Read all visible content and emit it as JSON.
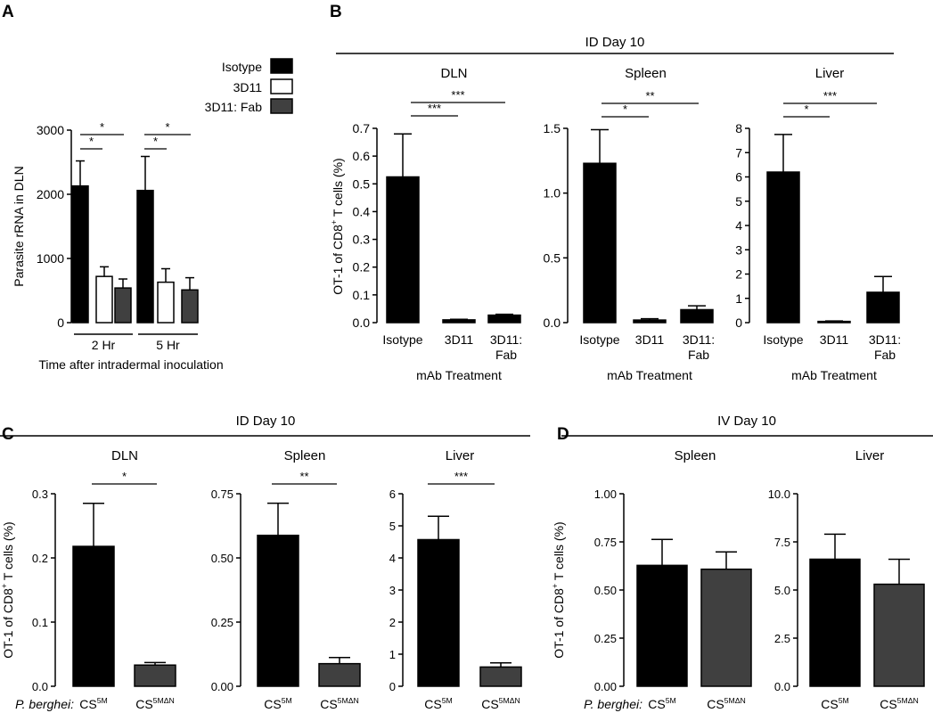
{
  "panels": {
    "A": {
      "letter": "A"
    },
    "B": {
      "letter": "B",
      "header": "ID Day 10"
    },
    "C": {
      "letter": "C",
      "header": "ID Day 10"
    },
    "D": {
      "letter": "D",
      "header": "IV Day 10"
    }
  },
  "colors": {
    "isotype": "#000000",
    "d3d11": "#ffffff",
    "fab": "#404040",
    "cs5m": "#000000",
    "cs5mdn": "#404040"
  },
  "chart_data": [
    {
      "id": "A",
      "type": "bar",
      "ylabel": "Parasite rRNA in DLN",
      "xlabel": "Time after intradermal inoculation",
      "categories": [
        "2 Hr",
        "5 Hr"
      ],
      "ylim": [
        0,
        3000
      ],
      "yticks": [
        "0",
        "1000",
        "2000",
        "3000"
      ],
      "legend": [
        "Isotype",
        "3D11",
        "3D11: Fab"
      ],
      "series": [
        {
          "name": "Isotype",
          "values": [
            2130,
            2060
          ],
          "errors": [
            390,
            530
          ]
        },
        {
          "name": "3D11",
          "values": [
            720,
            630
          ],
          "errors": [
            150,
            210
          ]
        },
        {
          "name": "3D11: Fab",
          "values": [
            540,
            510
          ],
          "errors": [
            140,
            190
          ]
        }
      ],
      "significance": [
        "*",
        "*",
        "*",
        "*"
      ]
    },
    {
      "id": "B1",
      "type": "bar",
      "title": "DLN",
      "ylabel": "OT-1 of CD8+ T cells (%)",
      "xlabel": "mAb Treatment",
      "categories": [
        "Isotype",
        "3D11",
        "3D11: Fab"
      ],
      "values": [
        0.525,
        0.01,
        0.027
      ],
      "errors": [
        0.155,
        0.002,
        0.003
      ],
      "ylim": [
        0,
        0.7
      ],
      "yticks": [
        "0.0",
        "0.1",
        "0.2",
        "0.3",
        "0.4",
        "0.5",
        "0.6",
        "0.7"
      ],
      "significance": [
        "***",
        "***"
      ]
    },
    {
      "id": "B2",
      "type": "bar",
      "title": "Spleen",
      "xlabel": "mAb Treatment",
      "categories": [
        "Isotype",
        "3D11",
        "3D11: Fab"
      ],
      "values": [
        1.23,
        0.02,
        0.1
      ],
      "errors": [
        0.26,
        0.01,
        0.03
      ],
      "ylim": [
        0,
        1.5
      ],
      "yticks": [
        "0.0",
        "0.5",
        "1.0",
        "1.5"
      ],
      "significance": [
        "**",
        "*"
      ]
    },
    {
      "id": "B3",
      "type": "bar",
      "title": "Liver",
      "xlabel": "mAb Treatment",
      "categories": [
        "Isotype",
        "3D11",
        "3D11: Fab"
      ],
      "values": [
        6.2,
        0.05,
        1.25
      ],
      "errors": [
        1.55,
        0.02,
        0.65
      ],
      "ylim": [
        0,
        8
      ],
      "yticks": [
        "0",
        "1",
        "2",
        "3",
        "4",
        "5",
        "6",
        "7",
        "8"
      ],
      "significance": [
        "***",
        "*"
      ]
    },
    {
      "id": "C1",
      "type": "bar",
      "title": "DLN",
      "ylabel": "OT-1 of CD8+ T cells (%)",
      "xlabel_prefix": "P. berghei:",
      "categories": [
        "CS5M",
        "CS5MΔN"
      ],
      "values": [
        0.218,
        0.033
      ],
      "errors": [
        0.067,
        0.004
      ],
      "ylim": [
        0,
        0.3
      ],
      "yticks": [
        "0.0",
        "0.1",
        "0.2",
        "0.3"
      ],
      "significance": [
        "*"
      ]
    },
    {
      "id": "C2",
      "type": "bar",
      "title": "Spleen",
      "categories": [
        "CS5M",
        "CS5MΔN"
      ],
      "values": [
        0.588,
        0.088
      ],
      "errors": [
        0.125,
        0.024
      ],
      "ylim": [
        0,
        0.75
      ],
      "yticks": [
        "0.00",
        "0.25",
        "0.50",
        "0.75"
      ],
      "significance": [
        "**"
      ]
    },
    {
      "id": "C3",
      "type": "bar",
      "title": "Liver",
      "categories": [
        "CS5M",
        "CS5MΔN"
      ],
      "values": [
        4.57,
        0.6
      ],
      "errors": [
        0.73,
        0.13
      ],
      "ylim": [
        0,
        6
      ],
      "yticks": [
        "0",
        "1",
        "2",
        "3",
        "4",
        "5",
        "6"
      ],
      "significance": [
        "***"
      ]
    },
    {
      "id": "D1",
      "type": "bar",
      "title": "Spleen",
      "ylabel": "OT-1 of CD8+ T cells (%)",
      "xlabel_prefix": "P. berghei:",
      "categories": [
        "CS5M",
        "CS5MΔN"
      ],
      "values": [
        0.628,
        0.608
      ],
      "errors": [
        0.135,
        0.09
      ],
      "ylim": [
        0,
        1
      ],
      "yticks": [
        "0.00",
        "0.25",
        "0.50",
        "0.75",
        "1.00"
      ],
      "significance": []
    },
    {
      "id": "D2",
      "type": "bar",
      "title": "Liver",
      "categories": [
        "CS5M",
        "CS5MΔN"
      ],
      "values": [
        6.6,
        5.3
      ],
      "errors": [
        1.3,
        1.3
      ],
      "ylim": [
        0,
        10
      ],
      "yticks": [
        "0.0",
        "2.5",
        "5.0",
        "7.5",
        "10.0"
      ],
      "significance": []
    }
  ]
}
